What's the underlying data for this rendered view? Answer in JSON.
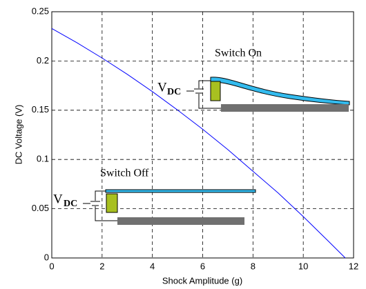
{
  "chart_data": {
    "type": "line",
    "x_label": "Shock Amplitude (g)",
    "y_label": "DC Voltage (V)",
    "x": [
      0,
      1,
      2,
      3,
      4,
      5,
      6,
      7,
      8,
      9,
      10,
      11,
      11.67
    ],
    "series": [
      {
        "color": "#0000ff",
        "values": [
          0.233,
          0.2185,
          0.203,
          0.1865,
          0.1689,
          0.1502,
          0.1307,
          0.11,
          0.088,
          0.066,
          0.042,
          0.017,
          0.0
        ]
      }
    ],
    "xlim": [
      0,
      12
    ],
    "ylim": [
      0,
      0.25
    ],
    "xticks": [
      0,
      2,
      4,
      6,
      8,
      10,
      12
    ],
    "yticks": [
      0,
      0.05,
      0.1,
      0.15,
      0.2,
      0.25
    ],
    "grid": true,
    "annotations": [
      "Switch On",
      "Switch Off"
    ],
    "source_labels": [
      {
        "base": "V",
        "sub": "DC"
      },
      {
        "base": "V",
        "sub": "DC"
      }
    ]
  }
}
